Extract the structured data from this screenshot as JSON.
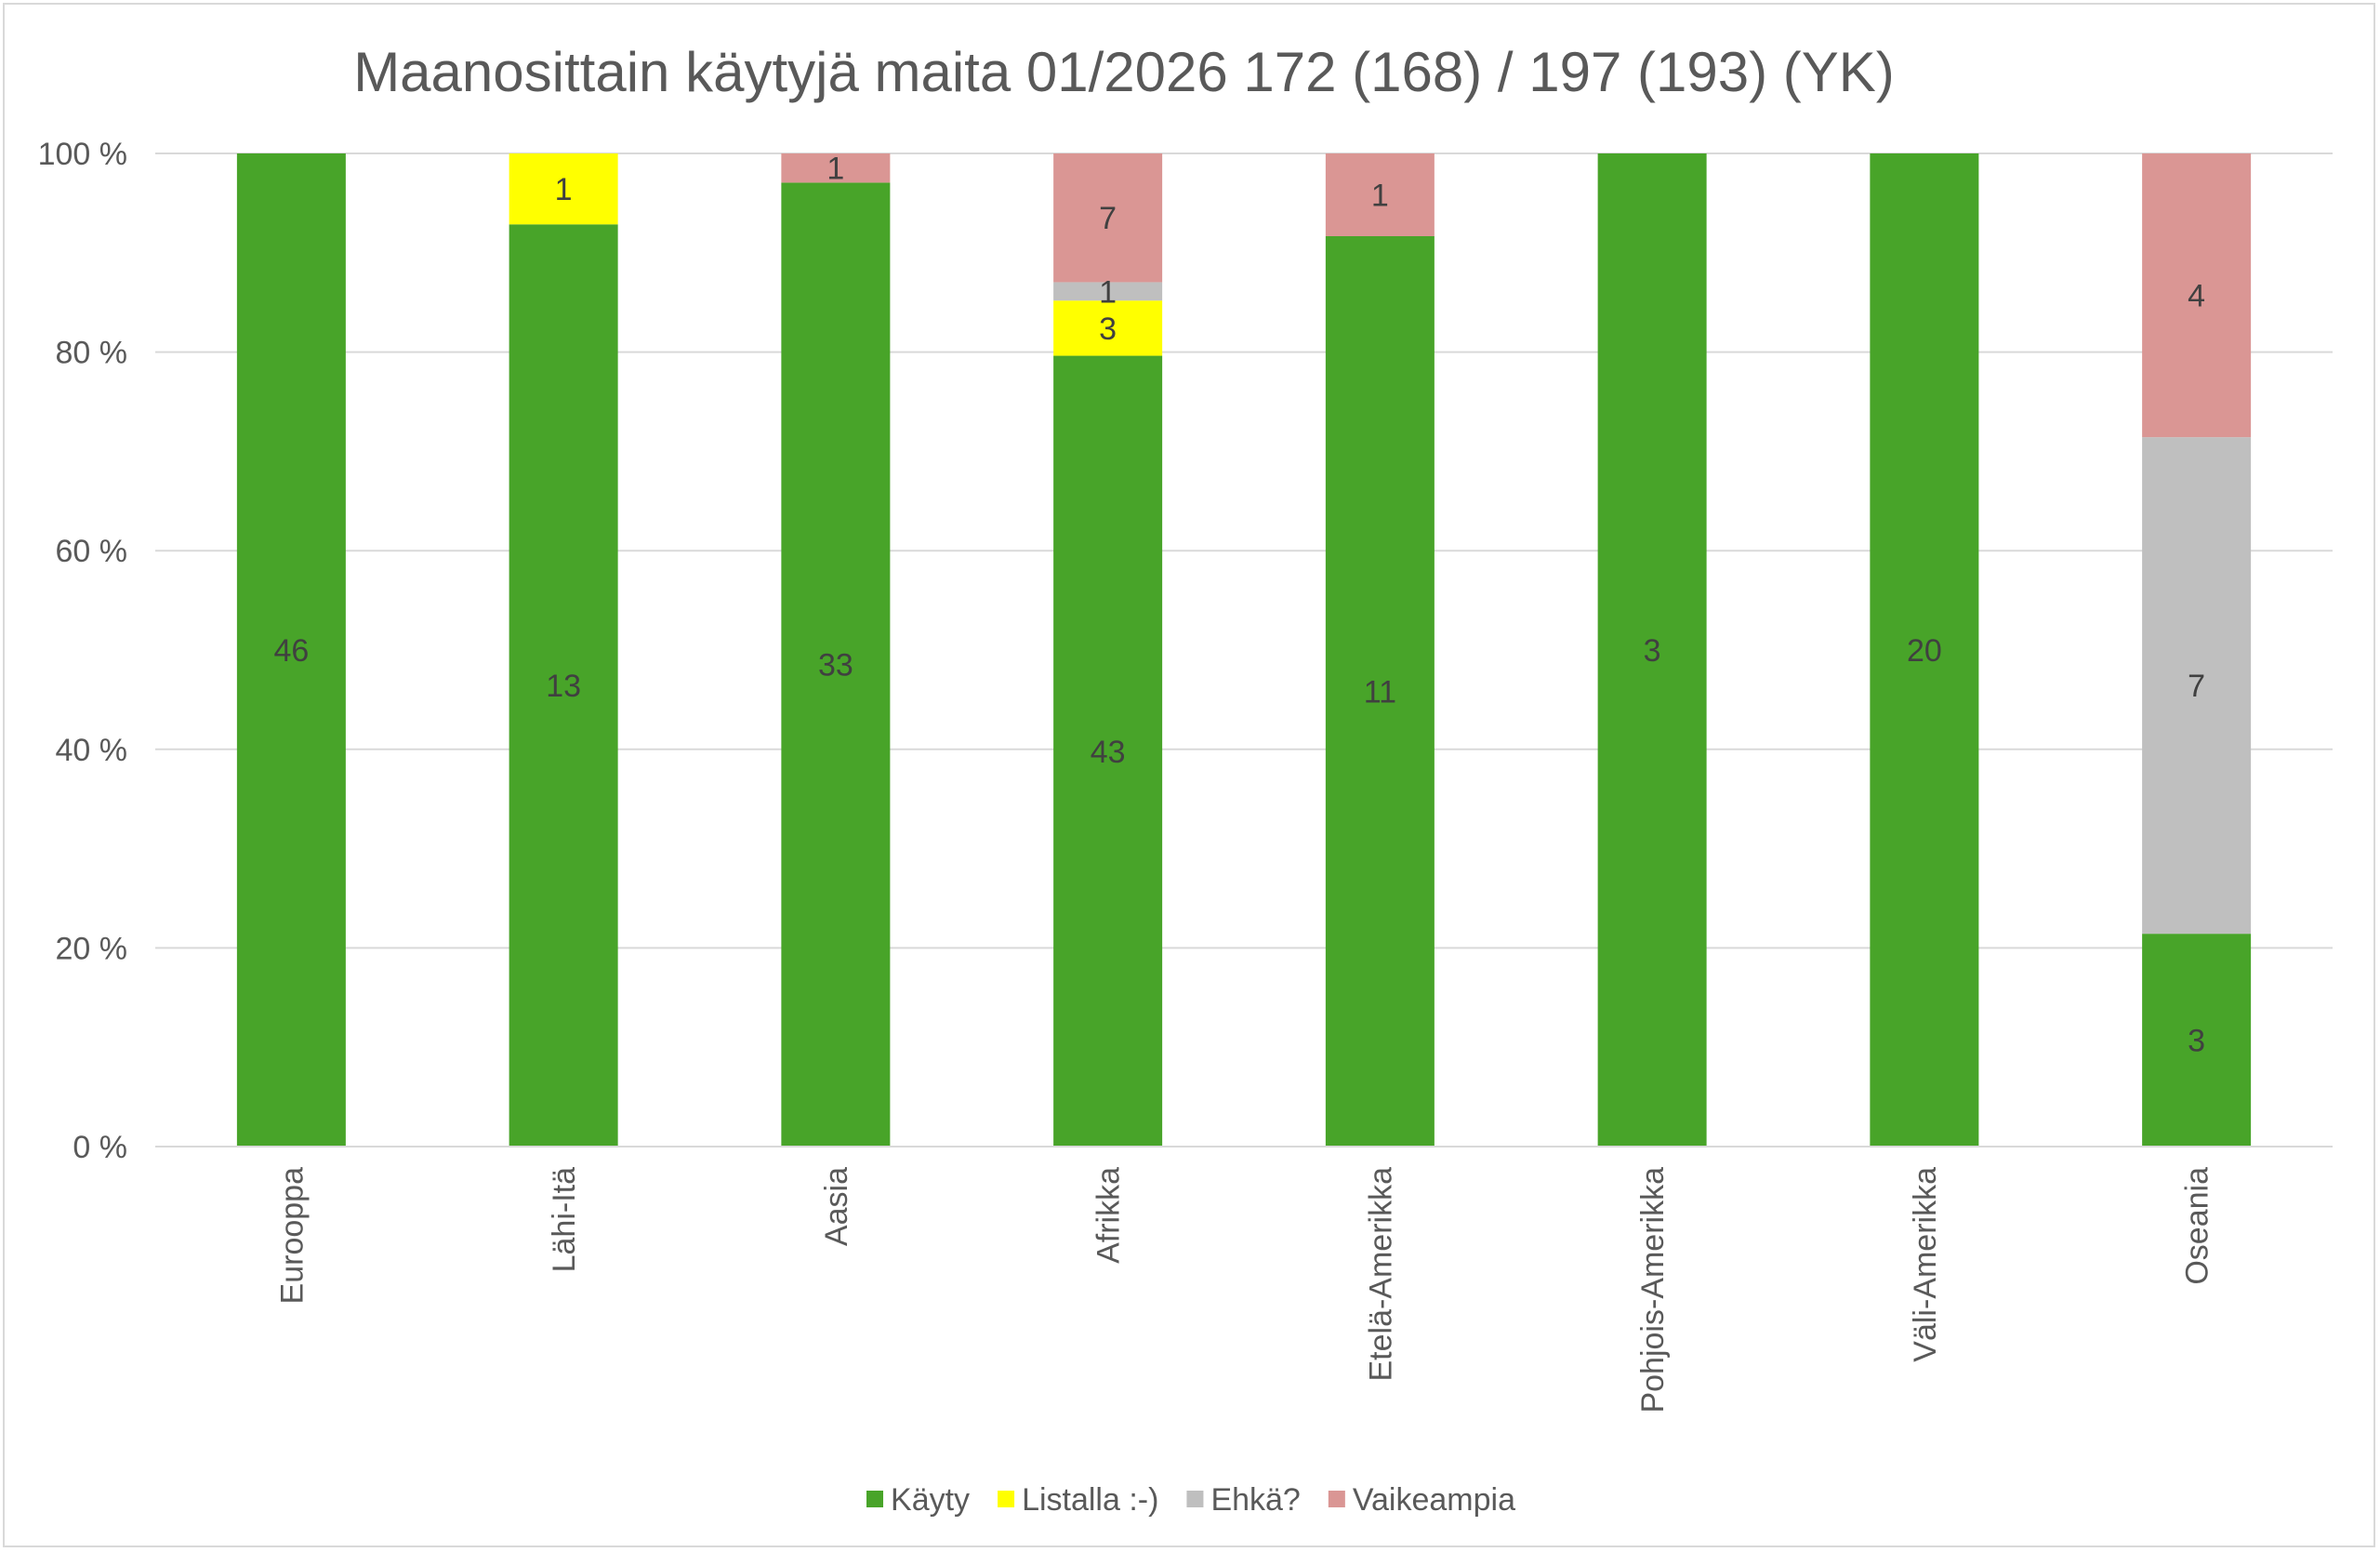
{
  "chart_data": {
    "type": "bar",
    "stacked": "percent",
    "title": "Maanosittain käytyjä maita 01/2026 172 (168) / 197 (193) (YK)",
    "categories": [
      "Eurooppa",
      "Lähi-Itä",
      "Aasia",
      "Afrikka",
      "Etelä-Amerikka",
      "Pohjois-Amerikka",
      "Väli-Amerikka",
      "Oseania"
    ],
    "series": [
      {
        "name": "Käyty",
        "color": "#48a429",
        "values": [
          46,
          13,
          33,
          43,
          11,
          3,
          20,
          3
        ]
      },
      {
        "name": "Listalla :-)",
        "color": "#ffff00",
        "values": [
          0,
          1,
          0,
          3,
          0,
          0,
          0,
          0
        ]
      },
      {
        "name": "Ehkä?",
        "color": "#bfbfbf",
        "values": [
          0,
          0,
          0,
          1,
          0,
          0,
          0,
          7
        ]
      },
      {
        "name": "Vaikeampia",
        "color": "#da9694",
        "values": [
          0,
          0,
          1,
          7,
          1,
          0,
          0,
          4
        ]
      }
    ],
    "y_ticks": [
      "0 %",
      "20 %",
      "40 %",
      "60 %",
      "80 %",
      "100 %"
    ],
    "ylim": [
      0,
      100
    ],
    "grid": true,
    "legend_position": "bottom"
  }
}
